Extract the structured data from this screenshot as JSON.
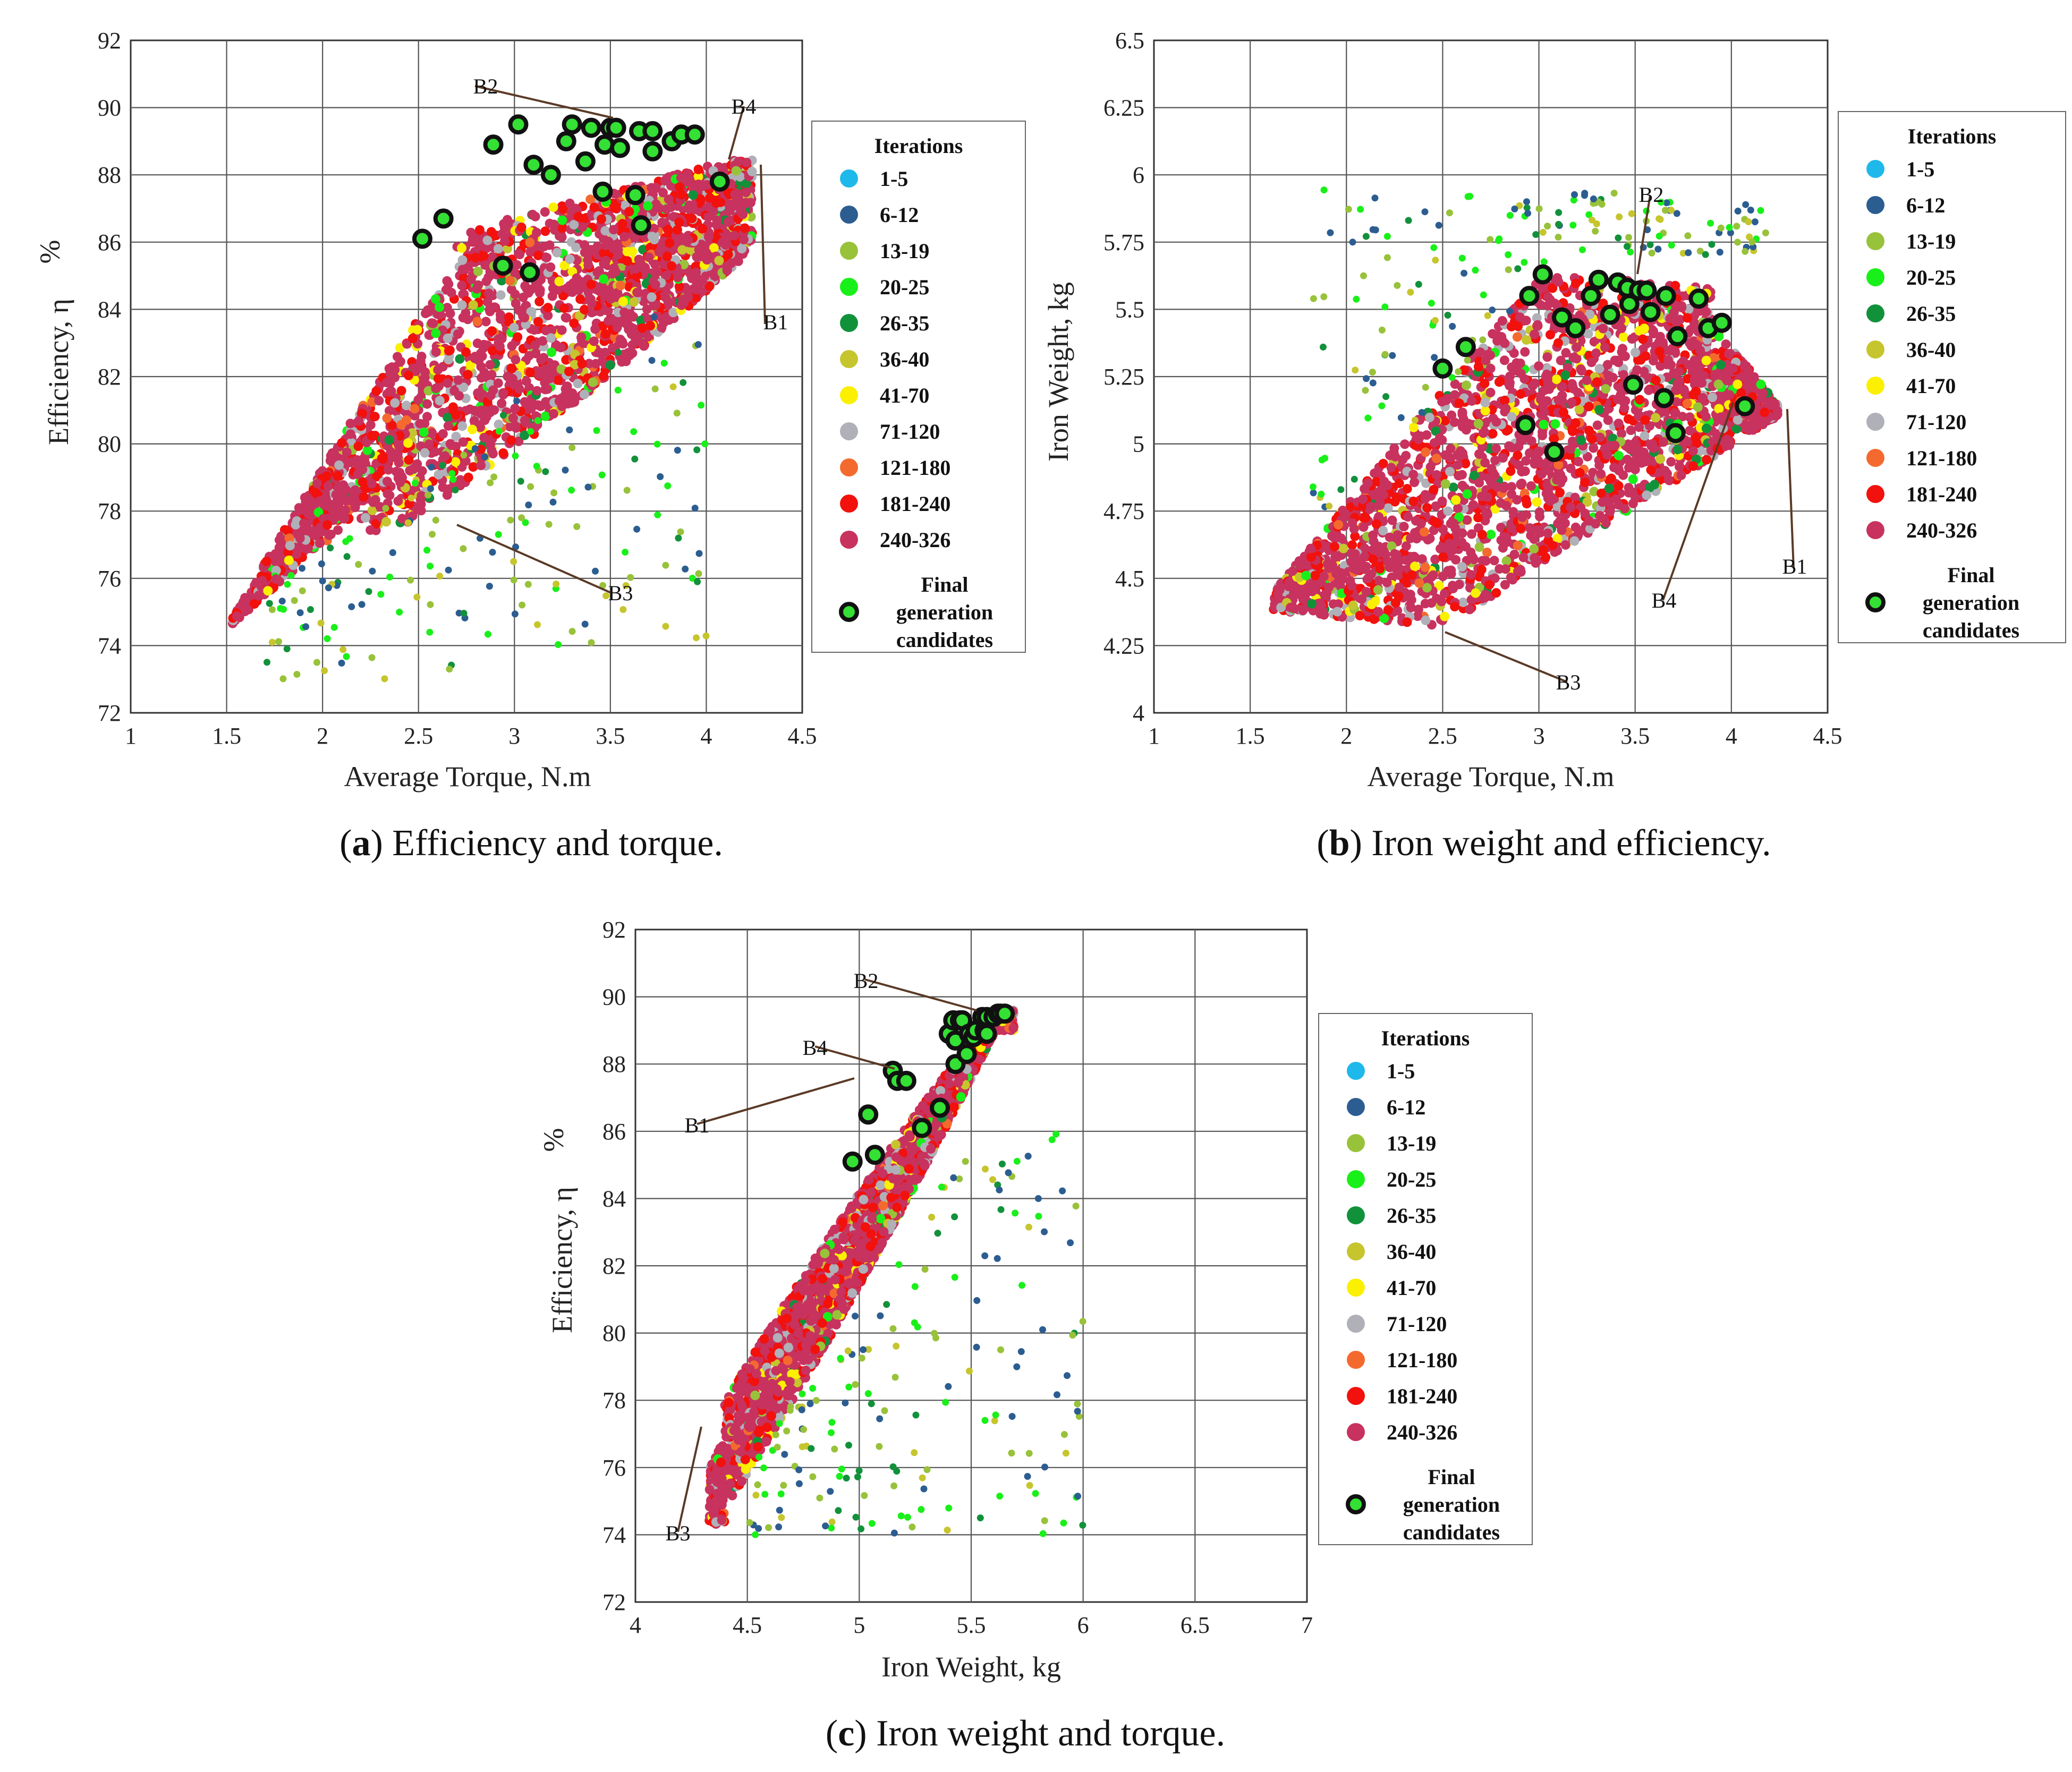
{
  "figure": {
    "panels": [
      {
        "id": "a",
        "caption_letter": "a",
        "caption_text": " Efficiency and torque."
      },
      {
        "id": "b",
        "caption_letter": "b",
        "caption_text": " Iron weight and efficiency."
      },
      {
        "id": "c",
        "caption_letter": "c",
        "caption_text": " Iron weight and torque."
      }
    ]
  },
  "legend": {
    "title": "Iterations",
    "entries": [
      {
        "label": "1-5",
        "color": "#1fb8ea"
      },
      {
        "label": "6-12",
        "color": "#2c5d91"
      },
      {
        "label": "13-19",
        "color": "#98c23a"
      },
      {
        "label": "20-25",
        "color": "#19f019"
      },
      {
        "label": "26-35",
        "color": "#12913b"
      },
      {
        "label": "36-40",
        "color": "#c6c52d"
      },
      {
        "label": "41-70",
        "color": "#fbf000"
      },
      {
        "label": "71-120",
        "color": "#b0b0b8"
      },
      {
        "label": "121-180",
        "color": "#f46a2e"
      },
      {
        "label": "181-240",
        "color": "#f2110c"
      },
      {
        "label": "240-326",
        "color": "#c8325e"
      }
    ],
    "final": {
      "line1": "Final",
      "line2": "generation",
      "line3": "candidates",
      "color": "#33e033"
    }
  },
  "chart_data": [
    {
      "type": "scatter",
      "xlabel": "Average Torque, N.m",
      "ylabel": "Efficiency, η",
      "yunit": "%",
      "xlim": [
        1,
        4.5
      ],
      "ylim": [
        72,
        92
      ],
      "x_ticks": [
        1,
        1.5,
        2,
        2.5,
        3,
        3.5,
        4,
        4.5
      ],
      "y_ticks": [
        72,
        74,
        76,
        78,
        80,
        82,
        84,
        86,
        88,
        90,
        92
      ],
      "x_tick_labels": [
        "1",
        "1.5",
        "2",
        "2.5",
        "3",
        "3.5",
        "4",
        "4.5"
      ],
      "y_tick_labels": [
        "72",
        "74",
        "76",
        "78",
        "80",
        "82",
        "84",
        "86",
        "88",
        "90",
        "92"
      ],
      "grid": true,
      "legend_position": "right",
      "final_candidates": {
        "x": [
          2.52,
          2.63,
          2.89,
          2.94,
          3.02,
          3.08,
          3.1,
          3.19,
          3.27,
          3.3,
          3.37,
          3.4,
          3.46,
          3.47,
          3.5,
          3.53,
          3.55,
          3.63,
          3.65,
          3.66,
          3.72,
          3.72,
          3.82,
          3.87,
          3.94,
          4.07
        ],
        "y": [
          86.1,
          86.7,
          88.9,
          85.3,
          89.5,
          85.1,
          88.3,
          88.0,
          89.0,
          89.5,
          88.4,
          89.4,
          87.5,
          88.9,
          89.4,
          89.4,
          88.8,
          87.4,
          89.3,
          86.5,
          88.7,
          89.3,
          89.0,
          89.2,
          89.2,
          87.8
        ]
      },
      "annotations": [
        {
          "label": "B1",
          "x": 3.48,
          "y": 89.4
        },
        {
          "label": "B2",
          "x": 3.48,
          "y": 89.4
        },
        {
          "label": "B3",
          "x": 2.4,
          "y": 78.0
        },
        {
          "label": "B4",
          "x": 4.07,
          "y": 87.8
        }
      ]
    },
    {
      "type": "scatter",
      "xlabel": "Average Torque, N.m",
      "ylabel": "Iron Weight, kg",
      "xlim": [
        1,
        4.5
      ],
      "ylim": [
        4,
        6.5
      ],
      "x_ticks": [
        1,
        1.5,
        2,
        2.5,
        3,
        3.5,
        4,
        4.5
      ],
      "y_ticks": [
        4,
        4.25,
        4.5,
        4.75,
        5,
        5.25,
        5.5,
        5.75,
        6,
        6.25,
        6.5
      ],
      "x_tick_labels": [
        "1",
        "1.5",
        "2",
        "2.5",
        "3",
        "3.5",
        "4",
        "4.5"
      ],
      "y_tick_labels": [
        "4",
        "4.25",
        "4.5",
        "4.75",
        "5",
        "5.25",
        "5.5",
        "5.75",
        "6",
        "6.25",
        "6.5"
      ],
      "grid": true,
      "legend_position": "right",
      "final_candidates": {
        "x": [
          2.5,
          2.62,
          2.95,
          2.93,
          3.02,
          3.08,
          3.12,
          3.19,
          3.27,
          3.31,
          3.37,
          3.41,
          3.46,
          3.47,
          3.52,
          3.56,
          3.58,
          3.65,
          3.66,
          3.71,
          3.72,
          3.83,
          3.88,
          3.95,
          4.07,
          3.49
        ],
        "y": [
          5.28,
          5.36,
          5.55,
          5.07,
          5.63,
          4.97,
          5.47,
          5.43,
          5.55,
          5.61,
          5.48,
          5.6,
          5.58,
          5.52,
          5.57,
          5.57,
          5.49,
          5.17,
          5.55,
          5.04,
          5.4,
          5.54,
          5.43,
          5.45,
          5.14,
          5.22
        ]
      },
      "annotations": [
        {
          "label": "B1",
          "x": 4.07,
          "y": 5.14
        },
        {
          "label": "B2",
          "x": 3.5,
          "y": 5.57
        },
        {
          "label": "B3",
          "x": 2.45,
          "y": 4.32
        },
        {
          "label": "B4",
          "x": 4.07,
          "y": 5.14
        }
      ]
    },
    {
      "type": "scatter",
      "xlabel": "Iron Weight, kg",
      "ylabel": "Efficiency, η",
      "yunit": "%",
      "xlim": [
        4,
        7
      ],
      "ylim": [
        72,
        92
      ],
      "x_ticks": [
        4,
        4.5,
        5,
        5.5,
        6,
        6.5,
        7
      ],
      "y_ticks": [
        72,
        74,
        76,
        78,
        80,
        82,
        84,
        86,
        88,
        90,
        92
      ],
      "x_tick_labels": [
        "4",
        "4.5",
        "5",
        "5.5",
        "6",
        "6.5",
        "7"
      ],
      "y_tick_labels": [
        "72",
        "74",
        "76",
        "78",
        "80",
        "82",
        "84",
        "86",
        "88",
        "90",
        "92"
      ],
      "grid": true,
      "legend_position": "right",
      "final_candidates": {
        "x": [
          4.97,
          5.04,
          5.07,
          5.15,
          5.17,
          5.21,
          5.28,
          5.36,
          5.4,
          5.42,
          5.43,
          5.43,
          5.45,
          5.46,
          5.48,
          5.49,
          5.51,
          5.52,
          5.55,
          5.56,
          5.57,
          5.57,
          5.6,
          5.62,
          5.63,
          5.65
        ],
        "y": [
          85.1,
          86.5,
          85.3,
          87.8,
          87.5,
          87.5,
          86.1,
          86.7,
          88.9,
          89.3,
          88.0,
          88.7,
          89.3,
          89.3,
          88.3,
          88.9,
          88.8,
          89.0,
          89.4,
          89.0,
          88.9,
          89.4,
          89.4,
          89.5,
          89.5,
          89.5
        ]
      },
      "annotations": [
        {
          "label": "B1",
          "x": 5.04,
          "y": 86.5
        },
        {
          "label": "B2",
          "x": 5.55,
          "y": 89.5
        },
        {
          "label": "B3",
          "x": 4.32,
          "y": 77.3
        },
        {
          "label": "B4",
          "x": 5.17,
          "y": 87.8
        }
      ]
    }
  ]
}
